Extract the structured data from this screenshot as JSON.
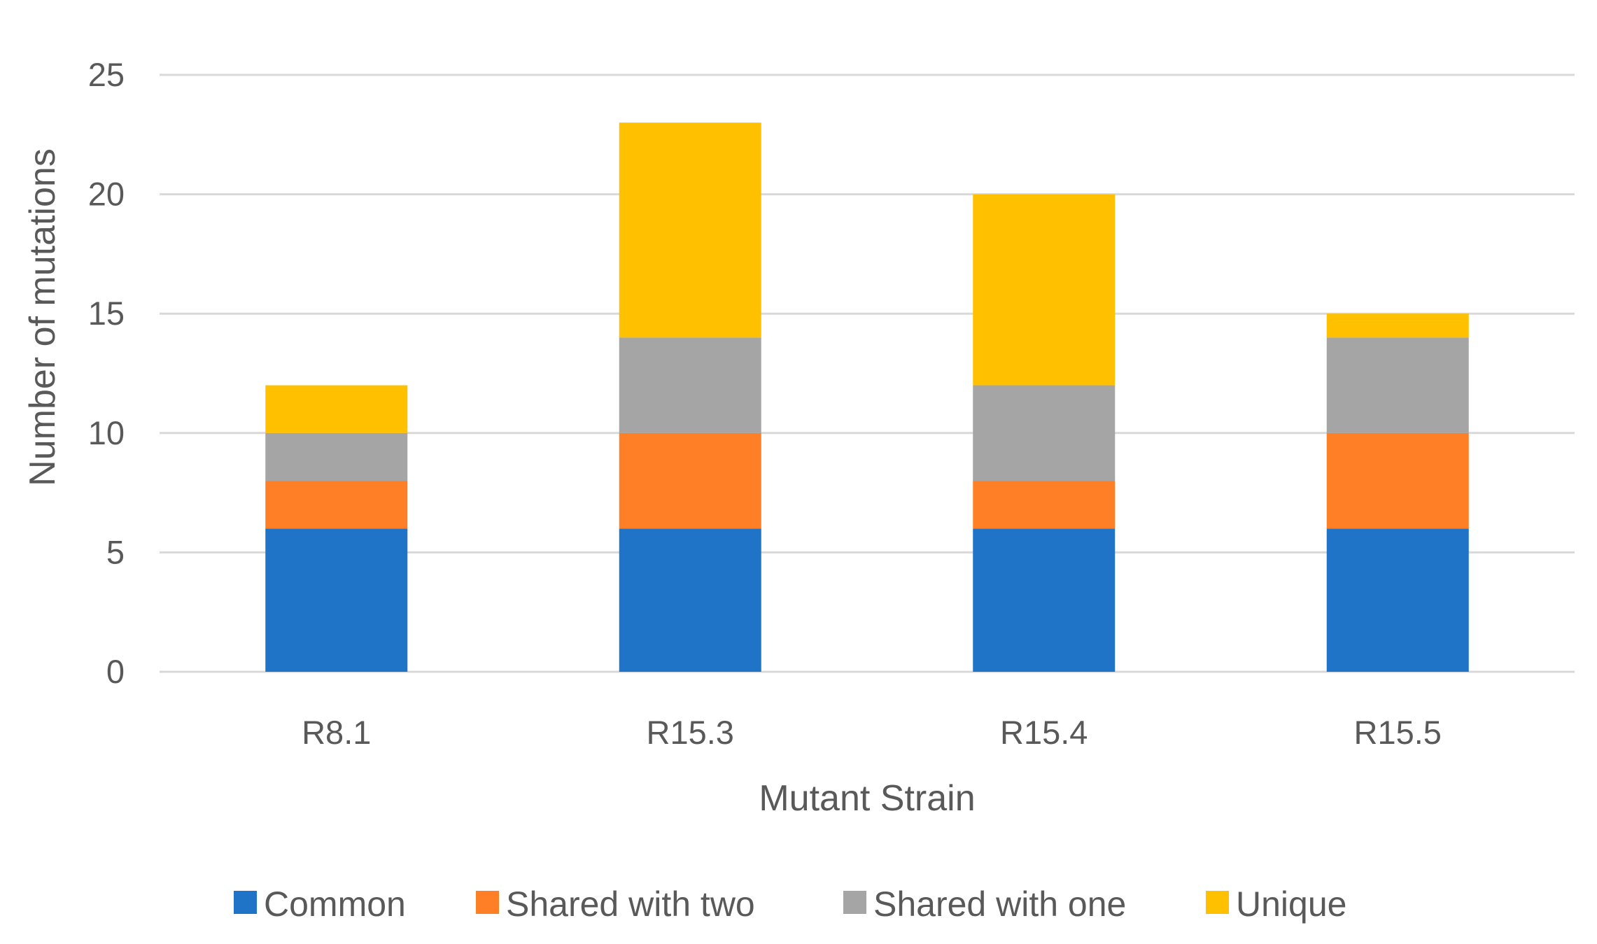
{
  "chart_data": {
    "type": "bar",
    "stacked": true,
    "categories": [
      "R8.1",
      "R15.3",
      "R15.4",
      "R15.5"
    ],
    "series": [
      {
        "name": "Common",
        "color": "#1F74C8",
        "values": [
          6,
          6,
          6,
          6
        ]
      },
      {
        "name": "Shared with two",
        "color": "#FF7F27",
        "values": [
          2,
          4,
          2,
          4
        ]
      },
      {
        "name": "Shared with one",
        "color": "#A5A5A5",
        "values": [
          2,
          4,
          4,
          4
        ]
      },
      {
        "name": "Unique",
        "color": "#FFC000",
        "values": [
          2,
          9,
          8,
          1
        ]
      }
    ],
    "title": "",
    "xlabel": "Mutant Strain",
    "ylabel": "Number of mutations",
    "ylim": [
      0,
      25
    ],
    "yticks": [
      0,
      5,
      10,
      15,
      20,
      25
    ],
    "grid": true,
    "legend_position": "bottom"
  }
}
